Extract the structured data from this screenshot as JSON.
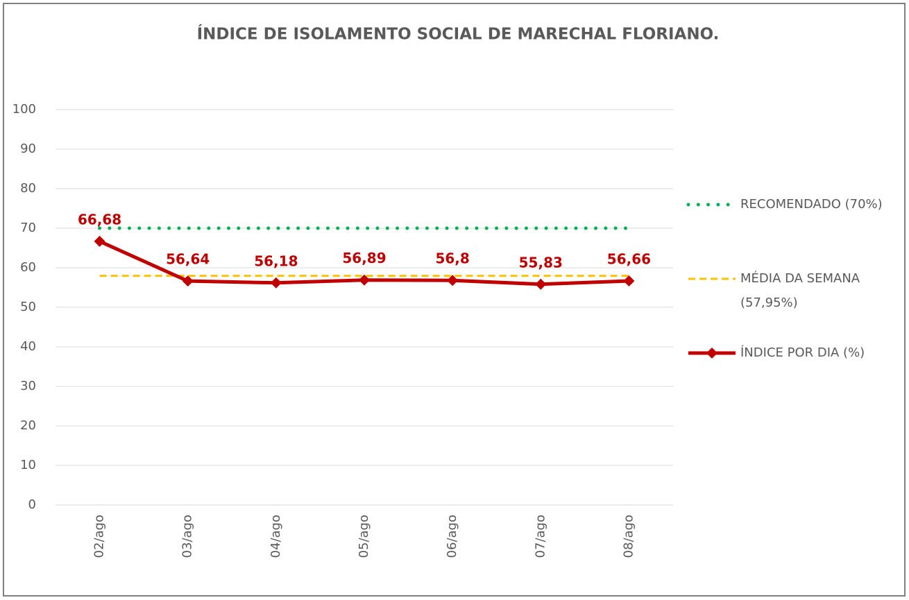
{
  "chart_data": {
    "type": "line",
    "title": "ÍNDICE DE ISOLAMENTO SOCIAL DE MARECHAL FLORIANO.",
    "categories": [
      "02/ago",
      "03/ago",
      "04/ago",
      "05/ago",
      "06/ago",
      "07/ago",
      "08/ago"
    ],
    "series": [
      {
        "name": "RECOMENDADO (70%)",
        "color": "#00b050",
        "style": "dotted",
        "values": [
          70,
          70,
          70,
          70,
          70,
          70,
          70
        ]
      },
      {
        "name": "MÉDIA DA SEMANA (57,95%)",
        "color": "#ffc000",
        "style": "dashed",
        "values": [
          57.95,
          57.95,
          57.95,
          57.95,
          57.95,
          57.95,
          57.95
        ]
      },
      {
        "name": "ÍNDICE POR DIA (%)",
        "color": "#c00000",
        "style": "solid",
        "marker": "diamond",
        "values": [
          66.68,
          56.64,
          56.18,
          56.89,
          56.8,
          55.83,
          56.66
        ],
        "value_labels": [
          "66,68",
          "56,64",
          "56,18",
          "56,89",
          "56,8",
          "55,83",
          "56,66"
        ]
      }
    ],
    "ylim": [
      0,
      100
    ],
    "yticks": [
      0,
      10,
      20,
      30,
      40,
      50,
      60,
      70,
      80,
      90,
      100
    ],
    "grid": true,
    "legend": "right"
  }
}
